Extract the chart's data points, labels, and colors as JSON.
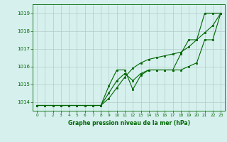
{
  "title": "Graphe pression niveau de la mer (hPa)",
  "bg_color": "#d6f0ee",
  "grid_color": "#b0ccc8",
  "line_color": "#006600",
  "marker_color": "#006600",
  "xlim": [
    -0.5,
    23.5
  ],
  "ylim": [
    1013.5,
    1019.5
  ],
  "yticks": [
    1014,
    1015,
    1016,
    1017,
    1018,
    1019
  ],
  "xticks": [
    0,
    1,
    2,
    3,
    4,
    5,
    6,
    7,
    8,
    9,
    10,
    11,
    12,
    13,
    14,
    15,
    16,
    17,
    18,
    19,
    20,
    21,
    22,
    23
  ],
  "series1": [
    1013.8,
    1013.8,
    1013.8,
    1013.8,
    1013.8,
    1013.8,
    1013.8,
    1013.8,
    1013.8,
    1014.9,
    1015.8,
    1015.8,
    1014.7,
    1015.5,
    1015.8,
    1015.8,
    1015.8,
    1015.8,
    1016.7,
    1017.5,
    1017.5,
    1019.0,
    1019.0,
    1019.0
  ],
  "series2": [
    1013.8,
    1013.8,
    1013.8,
    1013.8,
    1013.8,
    1013.8,
    1013.8,
    1013.8,
    1013.8,
    1014.2,
    1014.8,
    1015.4,
    1015.9,
    1016.2,
    1016.4,
    1016.5,
    1016.6,
    1016.7,
    1016.8,
    1017.1,
    1017.5,
    1017.9,
    1018.3,
    1019.0
  ],
  "series3": [
    1013.8,
    1013.8,
    1013.8,
    1013.8,
    1013.8,
    1013.8,
    1013.8,
    1013.8,
    1013.8,
    1014.5,
    1015.2,
    1015.6,
    1015.2,
    1015.6,
    1015.8,
    1015.8,
    1015.8,
    1015.8,
    1015.8,
    1016.0,
    1016.2,
    1017.5,
    1017.5,
    1019.0
  ]
}
